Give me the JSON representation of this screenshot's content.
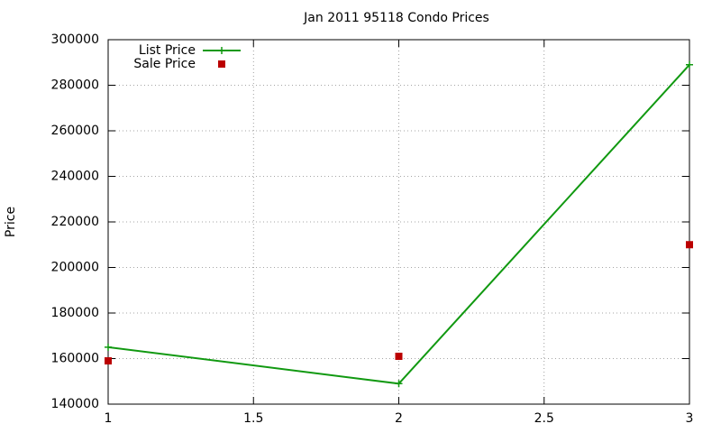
{
  "chart_data": {
    "type": "line",
    "title": "Jan 2011 95118 Condo Prices",
    "y_label": "Price",
    "x": [
      1,
      2,
      3
    ],
    "series": [
      {
        "name": "List Price",
        "color": "#119911",
        "values": [
          165000,
          149000,
          289000
        ],
        "line": true,
        "marker": "plus"
      },
      {
        "name": "Sale Price",
        "color": "#bb0000",
        "values": [
          159000,
          161000,
          210000
        ],
        "line": false,
        "marker": "square"
      }
    ],
    "xlim": [
      1,
      3
    ],
    "xticks": [
      1,
      1.5,
      2,
      2.5,
      3
    ],
    "ylim": [
      140000,
      300000
    ],
    "yticks": [
      140000,
      160000,
      180000,
      200000,
      220000,
      240000,
      260000,
      280000,
      300000
    ],
    "grid": true,
    "legend": "top-left"
  }
}
